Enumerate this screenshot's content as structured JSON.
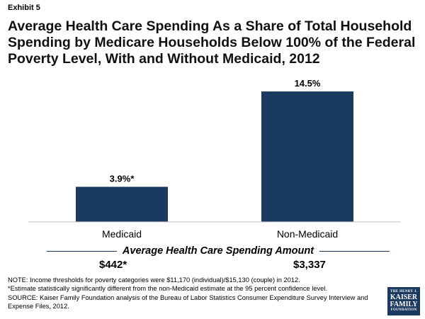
{
  "exhibit": "Exhibit 5",
  "title": "Average Health Care Spending As a Share of Total Household Spending by Medicare Households Below 100% of the Federal Poverty Level, With and Without Medicaid, 2012",
  "chart_data": {
    "type": "bar",
    "categories": [
      "Medicaid",
      "Non-Medicaid"
    ],
    "values": [
      3.9,
      14.5
    ],
    "data_labels": [
      "3.9%*",
      "14.5%"
    ],
    "ylim": [
      0,
      16
    ],
    "grid": false,
    "bar_color": "#1b3a5f"
  },
  "spending": {
    "heading": "Average Health Care Spending Amount",
    "amounts": [
      "$442*",
      "$3,337"
    ]
  },
  "notes": [
    "NOTE: Income thresholds for poverty categories were $11,170 (individual)/$15,130 (couple) in 2012.",
    "*Estimate statistically significantly different from the non-Medicaid estimate at the 95 percent confidence level.",
    "SOURCE: Kaiser Family Foundation analysis of the Bureau of Labor Statistics Consumer Expenditure Survey Interview and Expense Files, 2012."
  ],
  "logo": {
    "line1": "THE HENRY J.",
    "line2": "KAISER",
    "line3": "FAMILY",
    "line4": "FOUNDATION"
  }
}
